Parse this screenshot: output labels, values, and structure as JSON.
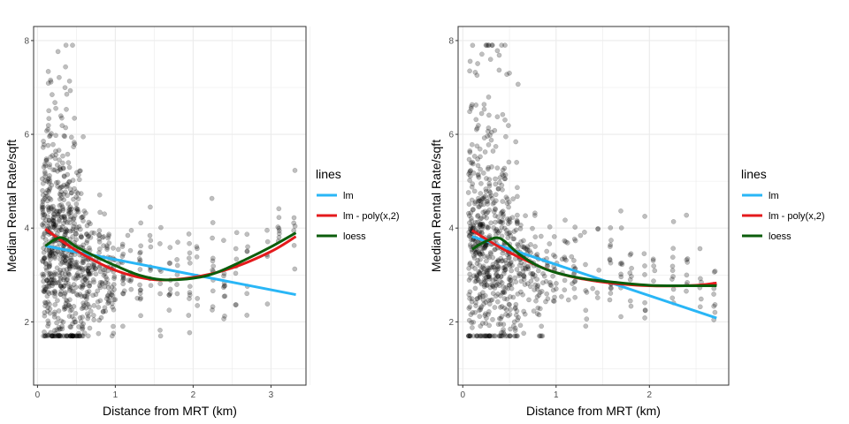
{
  "colors": {
    "lm": "#29b6f6",
    "poly": "#e41a1c",
    "loess": "#0b5d0b",
    "points": "#000000",
    "panel_border": "#333333",
    "grid": "#ebebeb"
  },
  "legend": {
    "title": "lines",
    "entries": [
      {
        "label": "lm",
        "color": "#29b6f6"
      },
      {
        "label": "lm - poly(x,2)",
        "color": "#e41a1c"
      },
      {
        "label": "loess",
        "color": "#0b5d0b"
      }
    ]
  },
  "chart_data": [
    {
      "type": "scatter",
      "xlabel": "Distance from MRT (km)",
      "ylabel": "Median Rental Rate/sqft",
      "xlim": [
        -0.05,
        3.45
      ],
      "ylim": [
        0.65,
        8.3
      ],
      "x_ticks": [
        0,
        1,
        2,
        3
      ],
      "y_ticks": [
        2,
        4,
        6,
        8
      ],
      "point_seed": 17,
      "point_count": 950,
      "point_extent": {
        "x_max": 3.35,
        "y_min": 1.7,
        "y_max": 7.9
      },
      "series": [
        {
          "name": "lm",
          "x": [
            0.1,
            3.32
          ],
          "y": [
            3.62,
            2.58
          ]
        },
        {
          "name": "lm - poly(x,2)",
          "x": [
            0.1,
            0.5,
            1.0,
            1.5,
            2.0,
            2.5,
            3.0,
            3.32
          ],
          "y": [
            3.98,
            3.52,
            3.1,
            2.9,
            2.95,
            3.15,
            3.5,
            3.82
          ]
        },
        {
          "name": "loess",
          "x": [
            0.1,
            0.3,
            0.5,
            0.8,
            1.0,
            1.3,
            1.6,
            2.0,
            2.3,
            2.7,
            3.0,
            3.32
          ],
          "y": [
            3.62,
            3.8,
            3.6,
            3.35,
            3.2,
            3.0,
            2.9,
            2.93,
            3.05,
            3.35,
            3.6,
            3.9
          ]
        }
      ]
    },
    {
      "type": "scatter",
      "xlabel": "Distance from MRT (km)",
      "ylabel": "Median Rental Rate/sqft",
      "xlim": [
        -0.05,
        2.85
      ],
      "ylim": [
        0.65,
        8.3
      ],
      "x_ticks": [
        0,
        1,
        2
      ],
      "y_ticks": [
        2,
        4,
        6,
        8
      ],
      "point_seed": 23,
      "point_count": 880,
      "point_extent": {
        "x_max": 2.72,
        "y_min": 1.7,
        "y_max": 7.9
      },
      "series": [
        {
          "name": "lm",
          "x": [
            0.1,
            2.72
          ],
          "y": [
            3.82,
            2.08
          ]
        },
        {
          "name": "lm - poly(x,2)",
          "x": [
            0.1,
            0.5,
            1.0,
            1.5,
            2.0,
            2.5,
            2.72
          ],
          "y": [
            3.95,
            3.48,
            3.05,
            2.85,
            2.77,
            2.78,
            2.83
          ]
        },
        {
          "name": "loess",
          "x": [
            0.1,
            0.25,
            0.4,
            0.6,
            0.8,
            1.0,
            1.3,
            1.6,
            2.0,
            2.4,
            2.72
          ],
          "y": [
            3.55,
            3.72,
            3.78,
            3.45,
            3.2,
            3.05,
            2.92,
            2.85,
            2.78,
            2.77,
            2.77
          ]
        }
      ]
    }
  ]
}
